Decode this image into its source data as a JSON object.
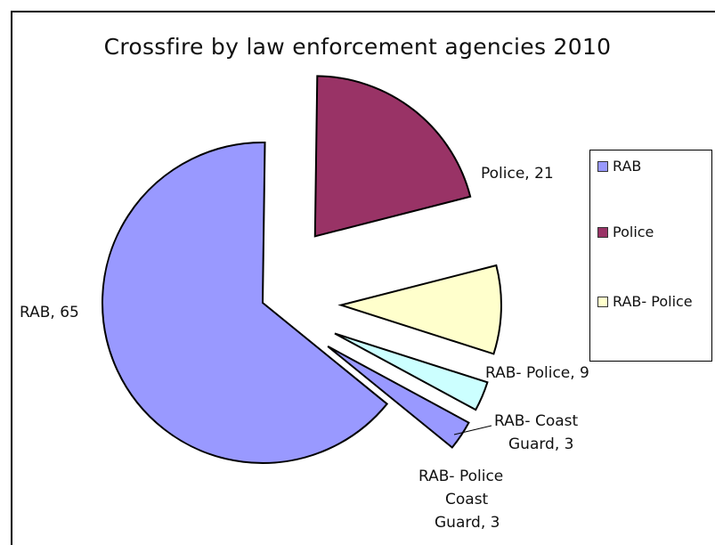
{
  "chart_data": {
    "type": "pie",
    "title": "Crossfire  by law enforcement agencies 2010",
    "slices": [
      {
        "name": "RAB",
        "value": 65,
        "color": "#9999ff",
        "label": [
          "RAB, 65"
        ]
      },
      {
        "name": "Police",
        "value": 21,
        "color": "#993366",
        "label": [
          "Police, 21"
        ]
      },
      {
        "name": "RAB- Police",
        "value": 9,
        "color": "#ffffcc",
        "label": [
          "RAB- Police, 9"
        ]
      },
      {
        "name": "RAB- Coast Guard",
        "value": 3,
        "color": "#ccffff",
        "label": [
          "RAB- Coast",
          "Guard, 3"
        ]
      },
      {
        "name": "RAB- Police Coast Guard",
        "value": 3,
        "color": "#9999ff",
        "label": [
          "RAB- Police",
          "Coast",
          "Guard, 3"
        ]
      }
    ],
    "legend": [
      {
        "name": "RAB",
        "color": "#9999ff"
      },
      {
        "name": "Police",
        "color": "#993366"
      },
      {
        "name": "RAB- Police",
        "color": "#ffffcc"
      }
    ],
    "legend_position": "right",
    "exploded": true
  }
}
